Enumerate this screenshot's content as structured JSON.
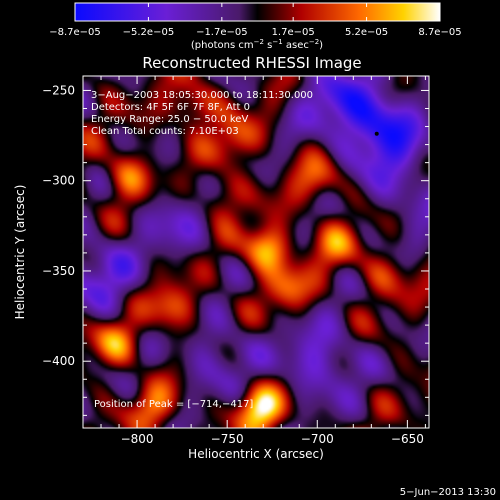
{
  "chart_data": {
    "type": "heatmap",
    "title": "Reconstructed RHESSI Image",
    "xlabel": "Heliocentric X (arcsec)",
    "ylabel": "Heliocentric Y (arcsec)",
    "xlim": [
      -830,
      -638
    ],
    "ylim": [
      -437,
      -242
    ],
    "x_ticks": [
      -800,
      -750,
      -700,
      -650
    ],
    "x_tick_labels": [
      "−800",
      "−750",
      "−700",
      "−650"
    ],
    "y_ticks": [
      -250,
      -300,
      -350,
      -400
    ],
    "y_tick_labels": [
      "−250",
      "−300",
      "−350",
      "−400"
    ],
    "colorbar": {
      "range": [
        -8.7e-05,
        8.7e-05
      ],
      "tick_values": [
        -8.7e-05,
        -5.2e-05,
        -1.7e-05,
        1.7e-05,
        5.2e-05,
        8.7e-05
      ],
      "tick_labels": [
        "−8.7e−05",
        "−5.2e−05",
        "−1.7e−05",
        "1.7e−05",
        "5.2e−05",
        "8.7e−05"
      ],
      "unit_main": "(photons cm",
      "unit_sup1": "−2",
      "unit_mid": " s",
      "unit_sup2": "−1",
      "unit_mid2": " asec",
      "unit_sup3": "−2",
      "unit_end": ")"
    },
    "annotations": {
      "time_range": "3−Aug−2003 18:05:30.000 to 18:11:30.000",
      "detectors": "Detectors: 4F 5F 6F 7F 8F, Att 0",
      "energy": "Energy Range: 25.0 − 50.0 keV",
      "clean": "Clean     Total counts: 7.10E+03",
      "peak": "Position of Peak = [−714,−417]"
    },
    "peak_position": [
      -714,
      -417
    ],
    "min_marker": [
      -667,
      -274
    ],
    "bright_sources": [
      {
        "x": -728,
        "y": -338,
        "amp": 0.8
      },
      {
        "x": -732,
        "y": -426,
        "amp": 0.95
      },
      {
        "x": -780,
        "y": -370,
        "amp": 0.55
      },
      {
        "x": -805,
        "y": -298,
        "amp": 0.55
      },
      {
        "x": -768,
        "y": -259,
        "amp": 0.5
      },
      {
        "x": -745,
        "y": -278,
        "amp": 0.45
      },
      {
        "x": -700,
        "y": -300,
        "amp": 0.4
      },
      {
        "x": -690,
        "y": -335,
        "amp": 0.45
      },
      {
        "x": -662,
        "y": -352,
        "amp": 0.35
      },
      {
        "x": -812,
        "y": -390,
        "amp": 0.55
      },
      {
        "x": -790,
        "y": -425,
        "amp": 0.45
      },
      {
        "x": -716,
        "y": -360,
        "amp": 0.45
      },
      {
        "x": -755,
        "y": -310,
        "amp": 0.4
      }
    ],
    "negative_regions": [
      {
        "x": -665,
        "y": -270,
        "amp": 0.9
      },
      {
        "x": -690,
        "y": -255,
        "amp": 0.5
      },
      {
        "x": -820,
        "y": -352,
        "amp": 0.5
      },
      {
        "x": -698,
        "y": -400,
        "amp": 0.55
      },
      {
        "x": -778,
        "y": -322,
        "amp": 0.35
      },
      {
        "x": -755,
        "y": -398,
        "amp": 0.4
      },
      {
        "x": -650,
        "y": -305,
        "amp": 0.4
      }
    ]
  },
  "footer_date": "5−Jun−2013 13:30"
}
